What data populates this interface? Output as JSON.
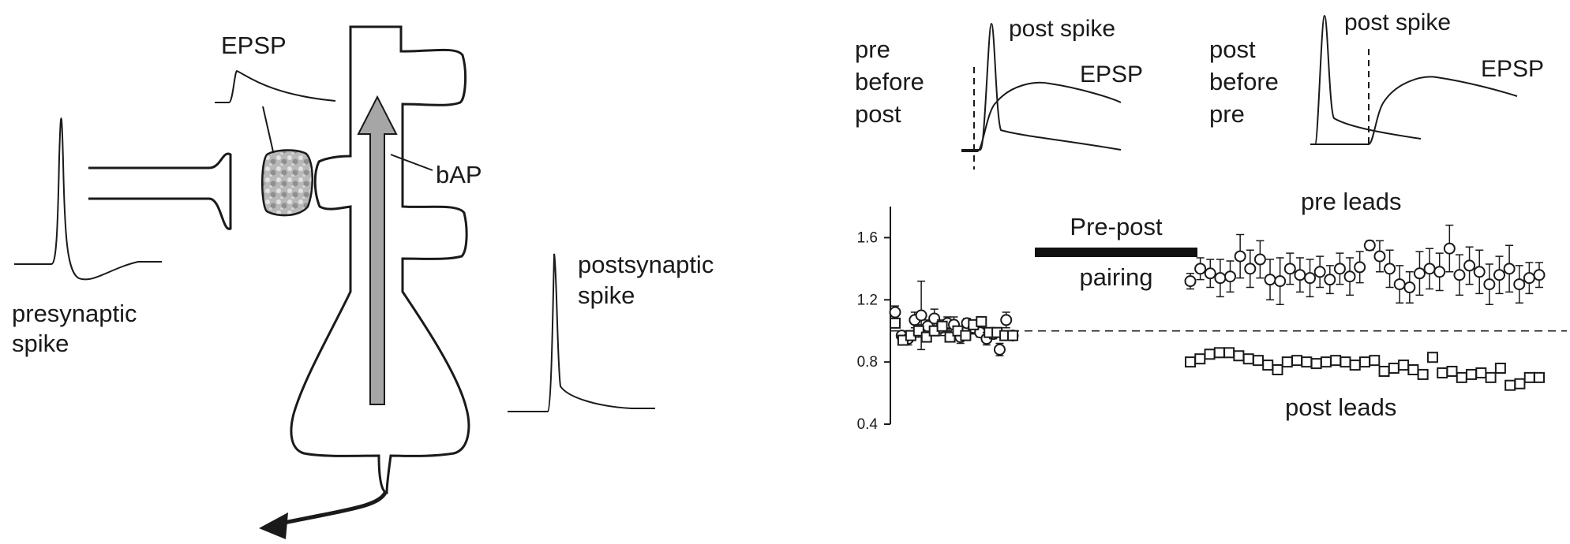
{
  "diagram": {
    "presynaptic_label": [
      "presynaptic",
      "spike"
    ],
    "epsp_label": "EPSP",
    "bap_label": "bAP",
    "postsynaptic_label": [
      "postsynaptic",
      "spike"
    ]
  },
  "traces": {
    "panel_a": {
      "condition": [
        "pre",
        "before",
        "post"
      ],
      "post_spike_label": "post spike",
      "epsp_label": "EPSP"
    },
    "panel_b": {
      "condition": [
        "post",
        "before",
        "pre"
      ],
      "post_spike_label": "post spike",
      "epsp_label": "EPSP"
    }
  },
  "chart_data": {
    "type": "scatter",
    "title": "",
    "xlabel": "",
    "ylabel": "",
    "ylim": [
      0.4,
      1.8
    ],
    "yticks": [
      "0.4",
      "0.8",
      "1.2",
      "1.6"
    ],
    "baseline": 1.0,
    "pairing_bar_label": [
      "Pre-post",
      "pairing"
    ],
    "annotations": [
      "pre leads",
      "post leads"
    ],
    "series": [
      {
        "marker": "circle",
        "before_pairing": [
          1.12,
          0.97,
          0.95,
          1.07,
          1.1,
          1.03,
          1.08,
          1.02,
          1.05,
          1.04,
          0.96,
          1.05,
          1.02,
          0.99,
          0.95,
          0.98,
          0.88,
          1.07,
          0.97
        ],
        "before_err": [
          0.04,
          0.03,
          0.04,
          0.05,
          0.22,
          0.04,
          0.06,
          0.05,
          0.04,
          0.05,
          0.04,
          0.03,
          0.04,
          0.03,
          0.04,
          0.03,
          0.04,
          0.05,
          0.03
        ],
        "after_pairing": [
          1.32,
          1.4,
          1.37,
          1.34,
          1.35,
          1.48,
          1.4,
          1.46,
          1.33,
          1.32,
          1.4,
          1.36,
          1.34,
          1.38,
          1.33,
          1.4,
          1.35,
          1.41,
          1.55,
          1.48,
          1.4,
          1.3,
          1.28,
          1.37,
          1.4,
          1.38,
          1.53,
          1.36,
          1.42,
          1.38,
          1.3,
          1.36,
          1.4,
          1.3,
          1.34,
          1.36
        ],
        "after_err": [
          0.05,
          0.07,
          0.09,
          0.12,
          0.1,
          0.14,
          0.12,
          0.12,
          0.13,
          0.15,
          0.1,
          0.11,
          0.12,
          0.1,
          0.09,
          0.1,
          0.12,
          0.1,
          0.03,
          0.1,
          0.12,
          0.12,
          0.1,
          0.14,
          0.13,
          0.12,
          0.15,
          0.13,
          0.12,
          0.14,
          0.13,
          0.12,
          0.15,
          0.12,
          0.1,
          0.08
        ]
      },
      {
        "marker": "square",
        "before_pairing": [
          1.05,
          0.94,
          0.97,
          1.0,
          0.96,
          1.0,
          1.03,
          0.96,
          1.0,
          0.97,
          1.04,
          1.06,
          0.99,
          0.99,
          0.97,
          0.97
        ],
        "before_err": [
          0.03,
          0.03,
          0.03,
          0.04,
          0.03,
          0.03,
          0.03,
          0.03,
          0.03,
          0.03,
          0.03,
          0.03,
          0.03,
          0.03,
          0.03,
          0.03
        ],
        "after_pairing": [
          0.8,
          0.82,
          0.85,
          0.86,
          0.86,
          0.84,
          0.82,
          0.81,
          0.78,
          0.75,
          0.8,
          0.81,
          0.8,
          0.79,
          0.8,
          0.81,
          0.8,
          0.78,
          0.8,
          0.81,
          0.74,
          0.76,
          0.78,
          0.75,
          0.72,
          0.83,
          0.73,
          0.74,
          0.7,
          0.72,
          0.73,
          0.7,
          0.76,
          0.65,
          0.66,
          0.7,
          0.7
        ],
        "after_err": [
          0.02,
          0.02,
          0.03,
          0.03,
          0.03,
          0.03,
          0.02,
          0.02,
          0.02,
          0.02,
          0.02,
          0.02,
          0.02,
          0.02,
          0.02,
          0.02,
          0.02,
          0.02,
          0.02,
          0.02,
          0.02,
          0.02,
          0.02,
          0.02,
          0.02,
          0.03,
          0.02,
          0.02,
          0.02,
          0.02,
          0.02,
          0.02,
          0.03,
          0.02,
          0.02,
          0.02,
          0.02
        ]
      }
    ]
  },
  "colors": {
    "ink": "#1a1a1a",
    "bap_arrow": "#a6a6a6",
    "spine_gradient": [
      "#8d8d8d",
      "#cfcfcf",
      "#b5b5b5"
    ]
  }
}
